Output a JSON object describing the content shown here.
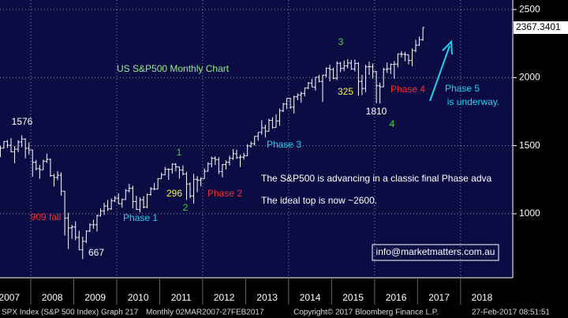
{
  "chart_data": {
    "type": "ohlc",
    "title": "US S&P500 Monthly Chart",
    "color": "#ffffff",
    "background": "#0c0c44",
    "open": [
      1406,
      1421,
      1482,
      1531,
      1503,
      1455,
      1474,
      1527,
      1549,
      1481,
      1468,
      1378,
      1331,
      1323,
      1386,
      1400,
      1280,
      1267,
      1283,
      1166,
      969,
      896,
      903,
      826,
      735,
      798,
      873,
      919,
      919,
      987,
      1021,
      1057,
      1036,
      1096,
      1115,
      1074,
      1104,
      1169,
      1187,
      1089,
      1031,
      1102,
      1049,
      1141,
      1183,
      1181,
      1258,
      1286,
      1327,
      1326,
      1364,
      1345,
      1321,
      1292,
      1219,
      1131,
      1253,
      1247,
      1258,
      1312,
      1366,
      1408,
      1398,
      1310,
      1362,
      1379,
      1407,
      1441,
      1412,
      1416,
      1426,
      1498,
      1515,
      1569,
      1598,
      1631,
      1606,
      1686,
      1633,
      1682,
      1757,
      1806,
      1848,
      1783,
      1859,
      1872,
      1884,
      1924,
      1960,
      1931,
      2003,
      1972,
      2018,
      2068,
      2059,
      1995,
      2105,
      2068,
      2086,
      2107,
      2063,
      2104,
      1972,
      1920,
      2079,
      2080,
      2044,
      1940,
      1932,
      2060,
      2065,
      2097,
      2099,
      2174,
      2171,
      2168,
      2126,
      2199,
      2239,
      2279
    ],
    "high": [
      1438,
      1499,
      1532,
      1541,
      1556,
      1497,
      1539,
      1576,
      1553,
      1524,
      1471,
      1396,
      1359,
      1397,
      1441,
      1405,
      1293,
      1314,
      1304,
      1168,
      1008,
      918,
      944,
      876,
      832,
      877,
      930,
      956,
      993,
      1040,
      1080,
      1101,
      1113,
      1130,
      1150,
      1112,
      1181,
      1220,
      1206,
      1132,
      1120,
      1129,
      1148,
      1196,
      1227,
      1262,
      1303,
      1344,
      1333,
      1370,
      1371,
      1345,
      1356,
      1308,
      1230,
      1293,
      1277,
      1268,
      1333,
      1378,
      1420,
      1422,
      1415,
      1364,
      1392,
      1427,
      1475,
      1470,
      1434,
      1448,
      1510,
      1531,
      1570,
      1598,
      1687,
      1654,
      1698,
      1709,
      1730,
      1772,
      1814,
      1849,
      1851,
      1868,
      1884,
      1897,
      1924,
      1968,
      1991,
      2005,
      2019,
      2018,
      2075,
      2094,
      2072,
      2120,
      2115,
      2126,
      2135,
      2130,
      2133,
      2113,
      2021,
      2094,
      2117,
      2104,
      2048,
      1963,
      2073,
      2111,
      2103,
      2121,
      2178,
      2194,
      2188,
      2169,
      2214,
      2278,
      2301,
      2371
    ],
    "low": [
      1364,
      1417,
      1480,
      1484,
      1452,
      1371,
      1452,
      1489,
      1407,
      1435,
      1271,
      1317,
      1257,
      1323,
      1373,
      1272,
      1200,
      1247,
      1133,
      840,
      741,
      815,
      805,
      735,
      667,
      784,
      866,
      889,
      869,
      979,
      992,
      1020,
      1029,
      1086,
      1071,
      1045,
      1101,
      1157,
      1040,
      1028,
      1011,
      1040,
      1040,
      1132,
      1174,
      1181,
      1257,
      1285,
      1249,
      1294,
      1311,
      1258,
      1283,
      1101,
      1115,
      1075,
      1158,
      1202,
      1258,
      1312,
      1341,
      1358,
      1292,
      1267,
      1325,
      1355,
      1396,
      1403,
      1343,
      1398,
      1426,
      1486,
      1501,
      1536,
      1581,
      1560,
      1605,
      1627,
      1633,
      1647,
      1747,
      1768,
      1770,
      1737,
      1834,
      1815,
      1863,
      1915,
      1931,
      1905,
      1965,
      1821,
      2001,
      1972,
      1988,
      1981,
      2040,
      2048,
      2068,
      2057,
      2045,
      1867,
      1872,
      1894,
      2020,
      1993,
      1812,
      1810,
      1931,
      2034,
      2026,
      1992,
      2075,
      2148,
      2120,
      2097,
      2084,
      2187,
      2233,
      2271
    ],
    "close": [
      1421,
      1482,
      1531,
      1503,
      1455,
      1474,
      1527,
      1549,
      1481,
      1468,
      1378,
      1331,
      1323,
      1386,
      1400,
      1280,
      1267,
      1283,
      1166,
      969,
      896,
      903,
      826,
      735,
      798,
      873,
      919,
      919,
      987,
      1021,
      1057,
      1036,
      1096,
      1115,
      1074,
      1104,
      1169,
      1187,
      1089,
      1031,
      1102,
      1049,
      1141,
      1183,
      1181,
      1258,
      1286,
      1327,
      1326,
      1364,
      1345,
      1321,
      1292,
      1219,
      1131,
      1253,
      1247,
      1258,
      1312,
      1366,
      1408,
      1398,
      1310,
      1362,
      1379,
      1407,
      1441,
      1412,
      1416,
      1426,
      1498,
      1515,
      1569,
      1598,
      1631,
      1606,
      1686,
      1633,
      1682,
      1757,
      1806,
      1848,
      1783,
      1859,
      1872,
      1884,
      1924,
      1960,
      1931,
      2003,
      1972,
      2018,
      2068,
      2059,
      1995,
      2105,
      2068,
      2086,
      2107,
      2063,
      2104,
      1972,
      1920,
      2079,
      2080,
      2044,
      1940,
      1932,
      2060,
      2065,
      2097,
      2099,
      2174,
      2171,
      2168,
      2126,
      2199,
      2239,
      2279,
      2367
    ],
    "ylim": [
      530,
      2570
    ],
    "yticks": [
      1000,
      1500,
      2000,
      2500
    ],
    "xticks": [
      2007,
      2008,
      2009,
      2010,
      2011,
      2012,
      2013,
      2014,
      2015,
      2016,
      2017,
      2018
    ],
    "grid": true,
    "last_price_label": "2367.3401",
    "annotations": [
      {
        "text": "1576",
        "color": "#ffffff"
      },
      {
        "text": "909 fall",
        "color": "#ff2a2a"
      },
      {
        "text": "667",
        "color": "#ffffff"
      },
      {
        "text": "Phase 1",
        "color": "#22d0ee"
      },
      {
        "text": "1",
        "color": "#33dd33"
      },
      {
        "text": "296",
        "color": "#f2f24a"
      },
      {
        "text": "2",
        "color": "#33dd33"
      },
      {
        "text": "Phase 2",
        "color": "#ff2a2a"
      },
      {
        "text": "Phase 3",
        "color": "#22d0ee"
      },
      {
        "text": "3",
        "color": "#33dd33"
      },
      {
        "text": "325",
        "color": "#f2f24a"
      },
      {
        "text": "1810",
        "color": "#ffffff"
      },
      {
        "text": "Phase 4",
        "color": "#ff2a2a"
      },
      {
        "text": "4",
        "color": "#33dd33"
      },
      {
        "text": "Phase 5",
        "color": "#22d0ee"
      },
      {
        "text": "is underway.",
        "color": "#22d0ee"
      },
      {
        "text": "The S&P500 is advancing in a classic final Phase adva",
        "color": "#ffffff"
      },
      {
        "text": "The ideal top is now ~2600.",
        "color": "#ffffff"
      }
    ],
    "website": "info@marketmatters.com.au",
    "status_bar": [
      "SPX Index (S&P 500 Index) Graph 217",
      "Monthly 02MAR2007-27FEB2017",
      "Copyright© 2017 Bloomberg Finance L.P.",
      "27-Feb-2017 08:51:51"
    ]
  }
}
